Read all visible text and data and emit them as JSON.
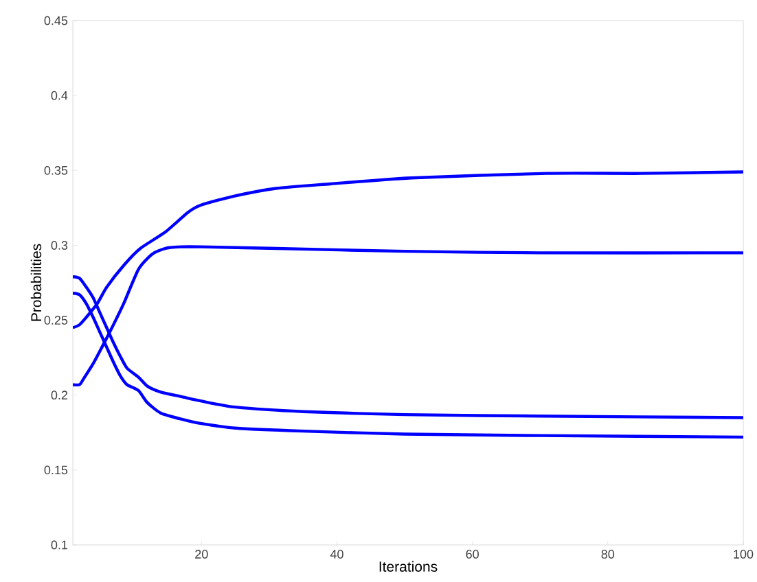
{
  "chart_data": {
    "type": "line",
    "xlabel": "Iterations",
    "ylabel": "Probabilities",
    "xlim": [
      1,
      100
    ],
    "ylim": [
      0.1,
      0.45
    ],
    "xticks": [
      20,
      40,
      60,
      80,
      100
    ],
    "yticks": [
      0.1,
      0.15,
      0.2,
      0.25,
      0.3,
      0.35,
      0.4,
      0.45
    ],
    "grid": false,
    "marker": "none",
    "line_style": "solid",
    "series": [
      {
        "color": "#0000ff",
        "x": [
          1,
          2,
          3,
          4.6,
          6,
          8.6,
          11,
          14.7,
          18,
          20,
          25,
          31,
          39,
          51,
          71,
          85,
          100
        ],
        "values": [
          0.245,
          0.247,
          0.252,
          0.261,
          0.272,
          0.287,
          0.298,
          0.309,
          0.322,
          0.327,
          0.333,
          0.338,
          0.341,
          0.345,
          0.348,
          0.348,
          0.349
        ]
      },
      {
        "color": "#0000ff",
        "x": [
          1,
          2,
          2.6,
          4,
          5.3,
          7,
          8.6,
          10.7,
          12.7,
          14.7,
          17,
          20,
          30,
          50,
          70,
          100
        ],
        "values": [
          0.207,
          0.207,
          0.211,
          0.221,
          0.232,
          0.247,
          0.262,
          0.284,
          0.294,
          0.298,
          0.299,
          0.299,
          0.298,
          0.296,
          0.295,
          0.295
        ]
      },
      {
        "color": "#0000ff",
        "x": [
          1,
          2,
          3,
          4,
          5,
          6,
          7,
          8,
          9,
          10.7,
          12,
          14,
          17,
          20,
          25,
          35,
          50,
          70,
          100
        ],
        "values": [
          0.279,
          0.278,
          0.272,
          0.265,
          0.255,
          0.245,
          0.235,
          0.226,
          0.218,
          0.212,
          0.206,
          0.202,
          0.199,
          0.196,
          0.192,
          0.189,
          0.187,
          0.186,
          0.185
        ]
      },
      {
        "color": "#0000ff",
        "x": [
          1,
          2,
          3,
          4,
          5,
          6,
          7,
          8,
          9,
          10.7,
          12,
          14,
          17,
          20,
          25,
          35,
          50,
          70,
          100
        ],
        "values": [
          0.268,
          0.267,
          0.261,
          0.252,
          0.242,
          0.232,
          0.222,
          0.213,
          0.207,
          0.203,
          0.195,
          0.188,
          0.184,
          0.181,
          0.178,
          0.176,
          0.174,
          0.173,
          0.172
        ]
      }
    ]
  }
}
